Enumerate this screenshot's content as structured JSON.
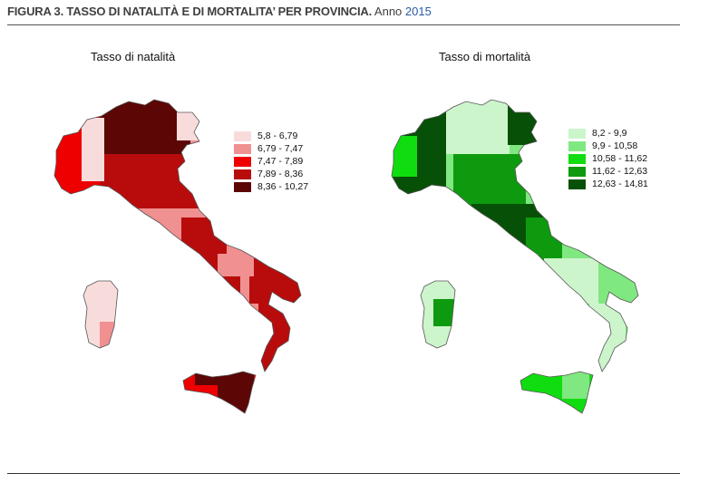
{
  "figure": {
    "title_bold": "FIGURA 3. TASSO DI NATALITÀ E DI MORTALITA’ PER PROVINCIA.",
    "title_anno": "Anno",
    "title_year": "2015"
  },
  "maps": [
    {
      "title": "Tasso di natalità",
      "legend": [
        {
          "label": "5,8 - 6,79",
          "color": "#f8dcdc"
        },
        {
          "label": "6,79 - 7,47",
          "color": "#f09090"
        },
        {
          "label": "7,47 - 7,89",
          "color": "#ee0000"
        },
        {
          "label": "7,89 - 8,36",
          "color": "#b80c0c"
        },
        {
          "label": "8,36 - 10,27",
          "color": "#5c0606"
        }
      ]
    },
    {
      "title": "Tasso di mortalità",
      "legend": [
        {
          "label": "8,2 - 9,9",
          "color": "#ccf5cc"
        },
        {
          "label": "9,9 - 10,58",
          "color": "#80e880"
        },
        {
          "label": "10,58 - 11,62",
          "color": "#10dd10"
        },
        {
          "label": "11,62 - 12,63",
          "color": "#0e9a0e"
        },
        {
          "label": "12,63 - 14,81",
          "color": "#075007"
        }
      ]
    }
  ]
}
